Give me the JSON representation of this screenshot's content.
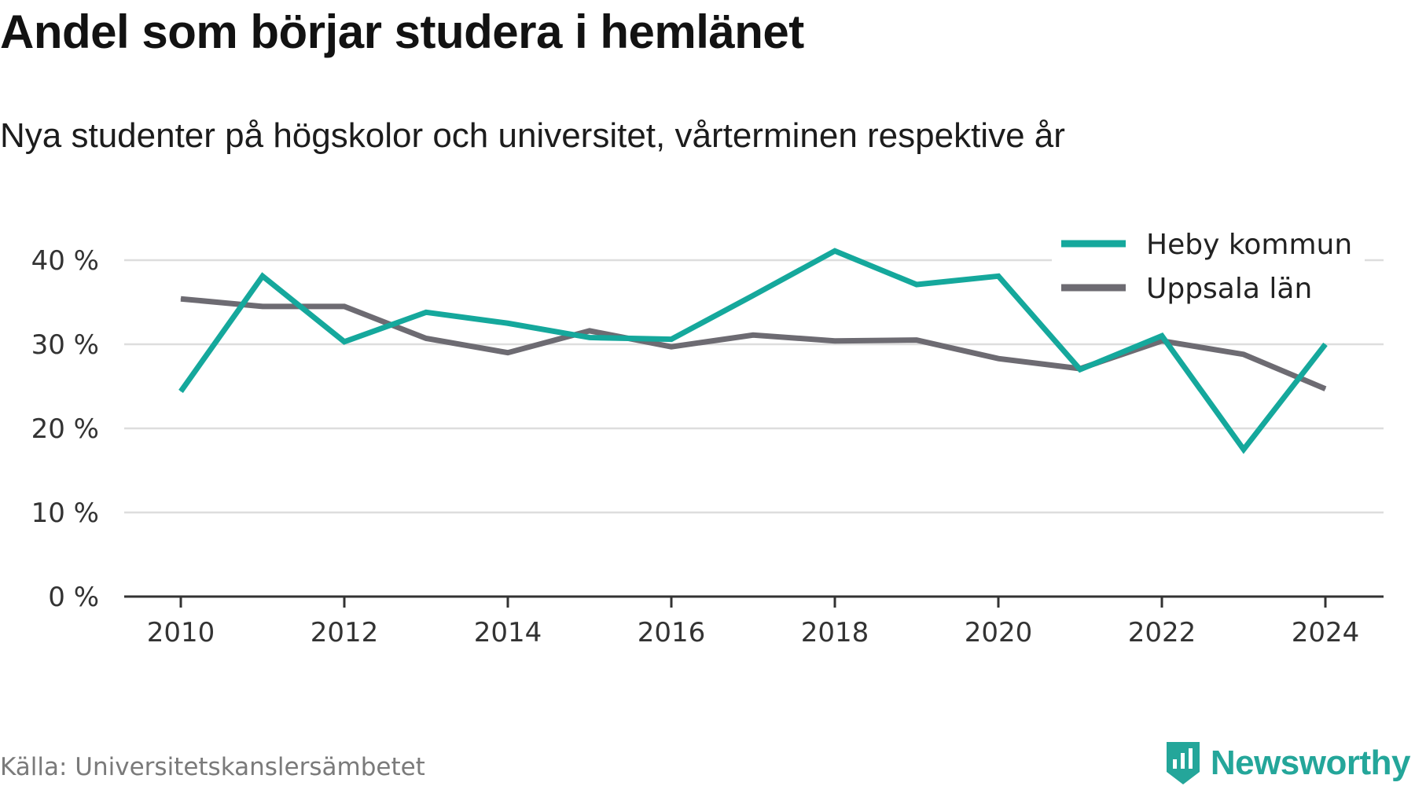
{
  "title": "Andel som börjar studera i hemlänet",
  "subtitle": "Nya studenter på högskolor och universitet, vårterminen respektive år",
  "source": "Källa: Universitetskanslersämbetet",
  "brand": "Newsworthy",
  "colors": {
    "heby": "#15a89c",
    "uppsala": "#6d6b72",
    "grid": "#dddddd",
    "axis": "#333333",
    "brand": "#24a69a"
  },
  "chart_data": {
    "type": "line",
    "x": [
      2010,
      2011,
      2012,
      2013,
      2014,
      2015,
      2016,
      2017,
      2018,
      2019,
      2020,
      2021,
      2022,
      2023,
      2024
    ],
    "x_ticks": [
      "2010",
      "2012",
      "2014",
      "2016",
      "2018",
      "2020",
      "2022",
      "2024"
    ],
    "y_ticks": [
      "0 %",
      "10 %",
      "20 %",
      "30 %",
      "40 %"
    ],
    "ylim": [
      0,
      40
    ],
    "series": [
      {
        "name": "Heby kommun",
        "color": "#15a89c",
        "values": [
          24.4,
          38.1,
          30.3,
          33.8,
          32.5,
          30.8,
          30.6,
          35.8,
          41.1,
          37.1,
          38.1,
          27.0,
          31.0,
          17.5,
          30.0
        ]
      },
      {
        "name": "Uppsala län",
        "color": "#6d6b72",
        "values": [
          35.4,
          34.5,
          34.5,
          30.7,
          29.0,
          31.6,
          29.7,
          31.1,
          30.4,
          30.5,
          28.3,
          27.1,
          30.4,
          28.8,
          24.7
        ]
      }
    ],
    "grid": true,
    "legend_position": "top-right"
  }
}
